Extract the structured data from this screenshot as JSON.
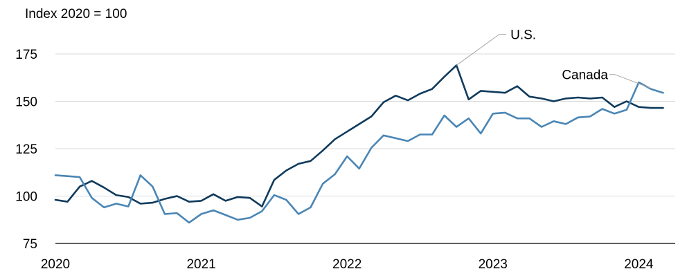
{
  "chart_data": {
    "type": "line",
    "ylabel": "Index 2020 = 100",
    "ylim": [
      75,
      175
    ],
    "yticks": [
      75,
      100,
      125,
      150,
      175
    ],
    "xlim": [
      2020,
      2024.25
    ],
    "xticks": [
      2020,
      2021,
      2022,
      2023,
      2024
    ],
    "xtick_labels": [
      "2020",
      "2021",
      "2022",
      "2023",
      "2024"
    ],
    "grid": true,
    "series": [
      {
        "name": "U.S.",
        "color": "#0f3a5c",
        "x": [
          2020.0,
          2020.0833,
          2020.1667,
          2020.25,
          2020.3333,
          2020.4167,
          2020.5,
          2020.5833,
          2020.6667,
          2020.75,
          2020.8333,
          2020.9167,
          2021.0,
          2021.0833,
          2021.1667,
          2021.25,
          2021.3333,
          2021.4167,
          2021.5,
          2021.5833,
          2021.6667,
          2021.75,
          2021.8333,
          2021.9167,
          2022.0,
          2022.0833,
          2022.1667,
          2022.25,
          2022.3333,
          2022.4167,
          2022.5,
          2022.5833,
          2022.6667,
          2022.75,
          2022.8333,
          2022.9167,
          2023.0,
          2023.0833,
          2023.1667,
          2023.25,
          2023.3333,
          2023.4167,
          2023.5,
          2023.5833,
          2023.6667,
          2023.75,
          2023.8333,
          2023.9167,
          2024.0,
          2024.0833,
          2024.1667
        ],
        "values": [
          98,
          97,
          105,
          108,
          104.5,
          100.5,
          99.5,
          96,
          96.5,
          98.5,
          100,
          97,
          97.5,
          101,
          97.5,
          99.5,
          99,
          94.5,
          108.5,
          113.5,
          117,
          118.5,
          124,
          130,
          134,
          138,
          142,
          149.5,
          153,
          150.5,
          154,
          156.5,
          163,
          169,
          151,
          155.5,
          155,
          154.5,
          158,
          152.5,
          151.5,
          150,
          151.5,
          152,
          151.5,
          152,
          147,
          150,
          147,
          146.5,
          146.5
        ]
      },
      {
        "name": "Canada",
        "color": "#4a86b5",
        "x": [
          2020.0,
          2020.0833,
          2020.1667,
          2020.25,
          2020.3333,
          2020.4167,
          2020.5,
          2020.5833,
          2020.6667,
          2020.75,
          2020.8333,
          2020.9167,
          2021.0,
          2021.0833,
          2021.1667,
          2021.25,
          2021.3333,
          2021.4167,
          2021.5,
          2021.5833,
          2021.6667,
          2021.75,
          2021.8333,
          2021.9167,
          2022.0,
          2022.0833,
          2022.1667,
          2022.25,
          2022.3333,
          2022.4167,
          2022.5,
          2022.5833,
          2022.6667,
          2022.75,
          2022.8333,
          2022.9167,
          2023.0,
          2023.0833,
          2023.1667,
          2023.25,
          2023.3333,
          2023.4167,
          2023.5,
          2023.5833,
          2023.6667,
          2023.75,
          2023.8333,
          2023.9167,
          2024.0,
          2024.0833,
          2024.1667
        ],
        "values": [
          111,
          110.5,
          110,
          99,
          94,
          96,
          94.5,
          111,
          105,
          90.5,
          91,
          86,
          90.5,
          92.5,
          90,
          87.5,
          88.5,
          92,
          100.5,
          98,
          90.5,
          94,
          106.5,
          111.5,
          121,
          114.5,
          125.5,
          132,
          130.5,
          129,
          132.5,
          132.5,
          142.5,
          136.5,
          141,
          133,
          143.5,
          144,
          141,
          141,
          136.5,
          139.5,
          138,
          141.5,
          142,
          146,
          143.5,
          145.5,
          160,
          156.5,
          154.5
        ]
      }
    ]
  }
}
